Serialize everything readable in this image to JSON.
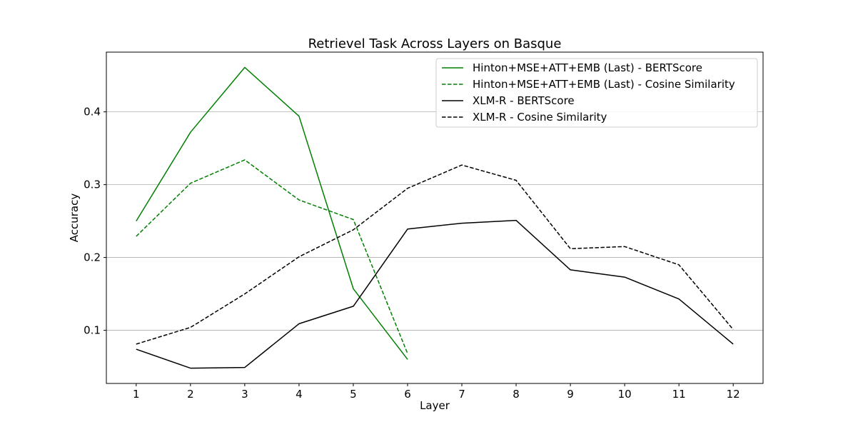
{
  "chart_data": {
    "type": "line",
    "title": "Retrievel Task Across Layers on Basque",
    "xlabel": "Layer",
    "ylabel": "Accuracy",
    "x": [
      1,
      2,
      3,
      4,
      5,
      6,
      7,
      8,
      9,
      10,
      11,
      12
    ],
    "xlim": [
      0.45,
      12.55
    ],
    "ylim": [
      0.027,
      0.482
    ],
    "yticks": [
      0.1,
      0.2,
      0.3,
      0.4
    ],
    "ytick_labels": [
      "0.1",
      "0.2",
      "0.3",
      "0.4"
    ],
    "xtick_labels": [
      "1",
      "2",
      "3",
      "4",
      "5",
      "6",
      "7",
      "8",
      "9",
      "10",
      "11",
      "12"
    ],
    "grid": "horizontal",
    "legend_position": "top-right",
    "series": [
      {
        "name": "Hinton+MSE+ATT+EMB (Last) - BERTScore",
        "color": "#008000",
        "style": "solid",
        "x": [
          1,
          2,
          3,
          4,
          5,
          6
        ],
        "values": [
          0.25,
          0.372,
          0.461,
          0.394,
          0.157,
          0.06
        ]
      },
      {
        "name": "Hinton+MSE+ATT+EMB (Last) - Cosine Similarity",
        "color": "#008000",
        "style": "dashed",
        "x": [
          1,
          2,
          3,
          4,
          5,
          6
        ],
        "values": [
          0.229,
          0.302,
          0.334,
          0.279,
          0.252,
          0.068
        ]
      },
      {
        "name": "XLM-R - BERTScore",
        "color": "#000000",
        "style": "solid",
        "x": [
          1,
          2,
          3,
          4,
          5,
          6,
          7,
          8,
          9,
          10,
          11,
          12
        ],
        "values": [
          0.074,
          0.048,
          0.049,
          0.109,
          0.133,
          0.239,
          0.247,
          0.251,
          0.183,
          0.173,
          0.143,
          0.081
        ]
      },
      {
        "name": "XLM-R - Cosine Similarity",
        "color": "#000000",
        "style": "dashed",
        "x": [
          1,
          2,
          3,
          4,
          5,
          6,
          7,
          8,
          9,
          10,
          11,
          12
        ],
        "values": [
          0.081,
          0.104,
          0.15,
          0.201,
          0.238,
          0.295,
          0.327,
          0.306,
          0.212,
          0.215,
          0.19,
          0.101
        ]
      }
    ]
  }
}
